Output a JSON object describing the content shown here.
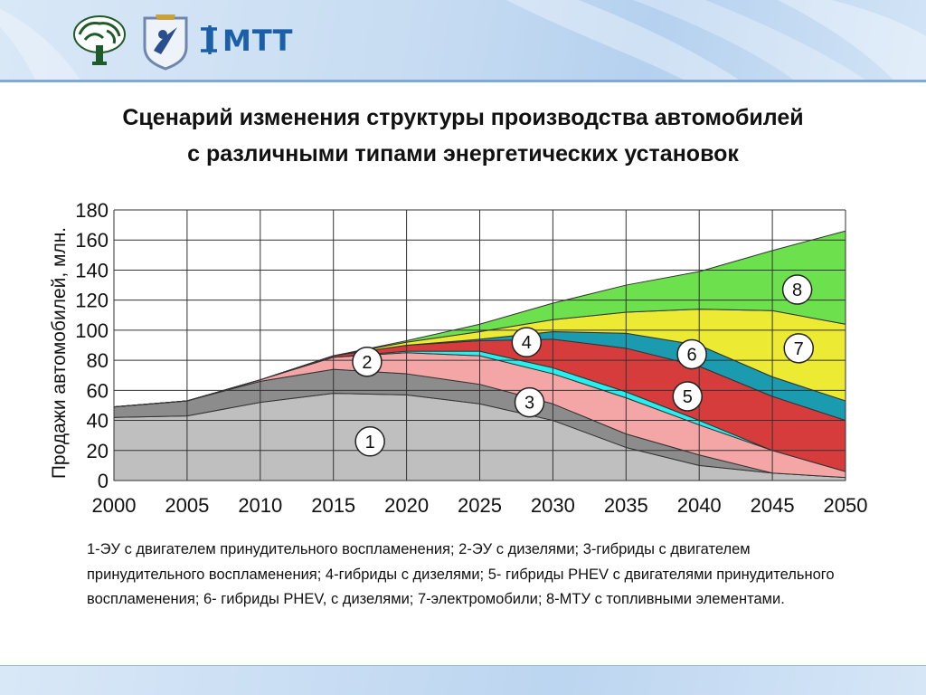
{
  "slide": {
    "brand": "МТТ",
    "title": "Сценарий изменения структуры производства автомобилей\nс различными типами энергетических установок",
    "caption": "1-ЭУ с двигателем принудительного воспламенения; 2-ЭУ с дизелями; 3-гибриды с двигателем принудительного воспламенения; 4-гибриды с дизелями; 5- гибриды PHEV с двигателями принудительного воспламенения; 6- гибриды PHEV, с дизелями; 7-электромобили; 8-МТУ с топливными элементами."
  },
  "chart_data": {
    "type": "area",
    "stacked": true,
    "ylabel": "Продажи автомобилей, млн.",
    "xlabel": "",
    "xlim": [
      2000,
      2050
    ],
    "ylim": [
      0,
      180
    ],
    "xticks": [
      2000,
      2005,
      2010,
      2015,
      2020,
      2025,
      2030,
      2035,
      2040,
      2045,
      2050
    ],
    "yticks": [
      0,
      20,
      40,
      60,
      80,
      100,
      120,
      140,
      160,
      180
    ],
    "grid": true,
    "x": [
      2000,
      2005,
      2010,
      2015,
      2020,
      2025,
      2030,
      2035,
      2040,
      2045,
      2050
    ],
    "series": [
      {
        "name": "1",
        "color": "#bfbfbf",
        "values": [
          42,
          43,
          52,
          58,
          57,
          51,
          40,
          22,
          10,
          5,
          2
        ],
        "label_pos": [
          2017.5,
          26
        ]
      },
      {
        "name": "2",
        "color": "#8c8c8c",
        "values": [
          7,
          10,
          14,
          16,
          14,
          13,
          11,
          9,
          7,
          0,
          0
        ],
        "label_pos": [
          2017.3,
          79
        ]
      },
      {
        "name": "3",
        "color": "#f4a6a6",
        "values": [
          0,
          0,
          1,
          8,
          14,
          19,
          20,
          24,
          20,
          15,
          4
        ],
        "label_pos": [
          2028.4,
          52
        ]
      },
      {
        "name": "4",
        "color": "#24f0f0",
        "values": [
          0,
          0,
          0,
          0,
          1,
          3,
          4,
          4,
          3,
          0,
          0
        ],
        "label_pos": [
          2028.2,
          92
        ]
      },
      {
        "name": "5",
        "color": "#d63c3c",
        "values": [
          0,
          0,
          0,
          1,
          4,
          7,
          19,
          29,
          36,
          36,
          34
        ],
        "label_pos": [
          2039.2,
          56
        ]
      },
      {
        "name": "6",
        "color": "#1a9bb0",
        "values": [
          0,
          0,
          0,
          0,
          0,
          1,
          5,
          10,
          14,
          13,
          13
        ],
        "label_pos": [
          2039.5,
          84
        ]
      },
      {
        "name": "7",
        "color": "#ecea32",
        "values": [
          0,
          0,
          0,
          0,
          2,
          5,
          8,
          14,
          24,
          44,
          51
        ],
        "label_pos": [
          2046.8,
          88
        ]
      },
      {
        "name": "8",
        "color": "#6de04e",
        "values": [
          0,
          0,
          0,
          0,
          1,
          5,
          11,
          18,
          25,
          40,
          62
        ],
        "label_pos": [
          2046.7,
          127
        ]
      }
    ],
    "colors": {
      "outline": "#333333",
      "grid": "#333333",
      "label_fill": "#ffffff",
      "label_stroke": "#222222"
    }
  }
}
